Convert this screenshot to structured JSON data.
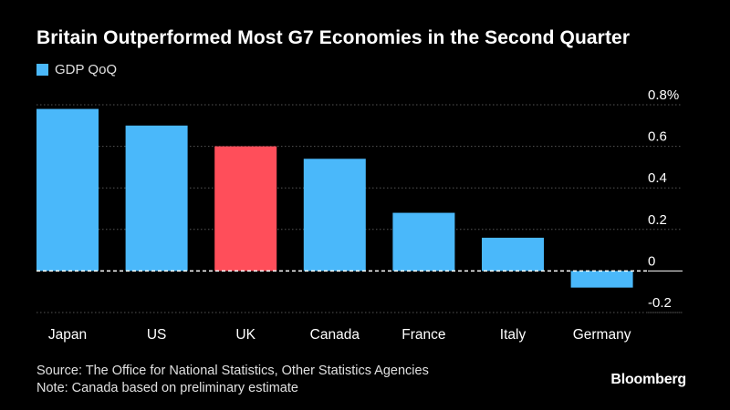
{
  "chart_data": {
    "type": "bar",
    "title": "Britain Outperformed Most G7 Economies in the Second Quarter",
    "series_name": "GDP QoQ",
    "categories": [
      "Japan",
      "US",
      "UK",
      "Canada",
      "France",
      "Italy",
      "Germany"
    ],
    "values": [
      0.78,
      0.7,
      0.6,
      0.54,
      0.28,
      0.16,
      -0.08
    ],
    "highlight_index": 2,
    "ylim": [
      -0.2,
      0.8
    ],
    "yticks": [
      0.8,
      0.6,
      0.4,
      0.2,
      0,
      -0.2
    ],
    "ytick_labels": [
      "0.8%",
      "0.6",
      "0.4",
      "0.2",
      "0",
      "-0.2"
    ],
    "grid": true,
    "legend_position": "top-left",
    "colors": {
      "bar": "#4ab8fa",
      "highlight": "#ff4e5a",
      "grid": "#555555",
      "zero_line": "#ffffff"
    }
  },
  "footer": {
    "source": "Source: The Office for National Statistics, Other Statistics Agencies",
    "note": "Note: Canada based on preliminary estimate"
  },
  "brand": "Bloomberg"
}
